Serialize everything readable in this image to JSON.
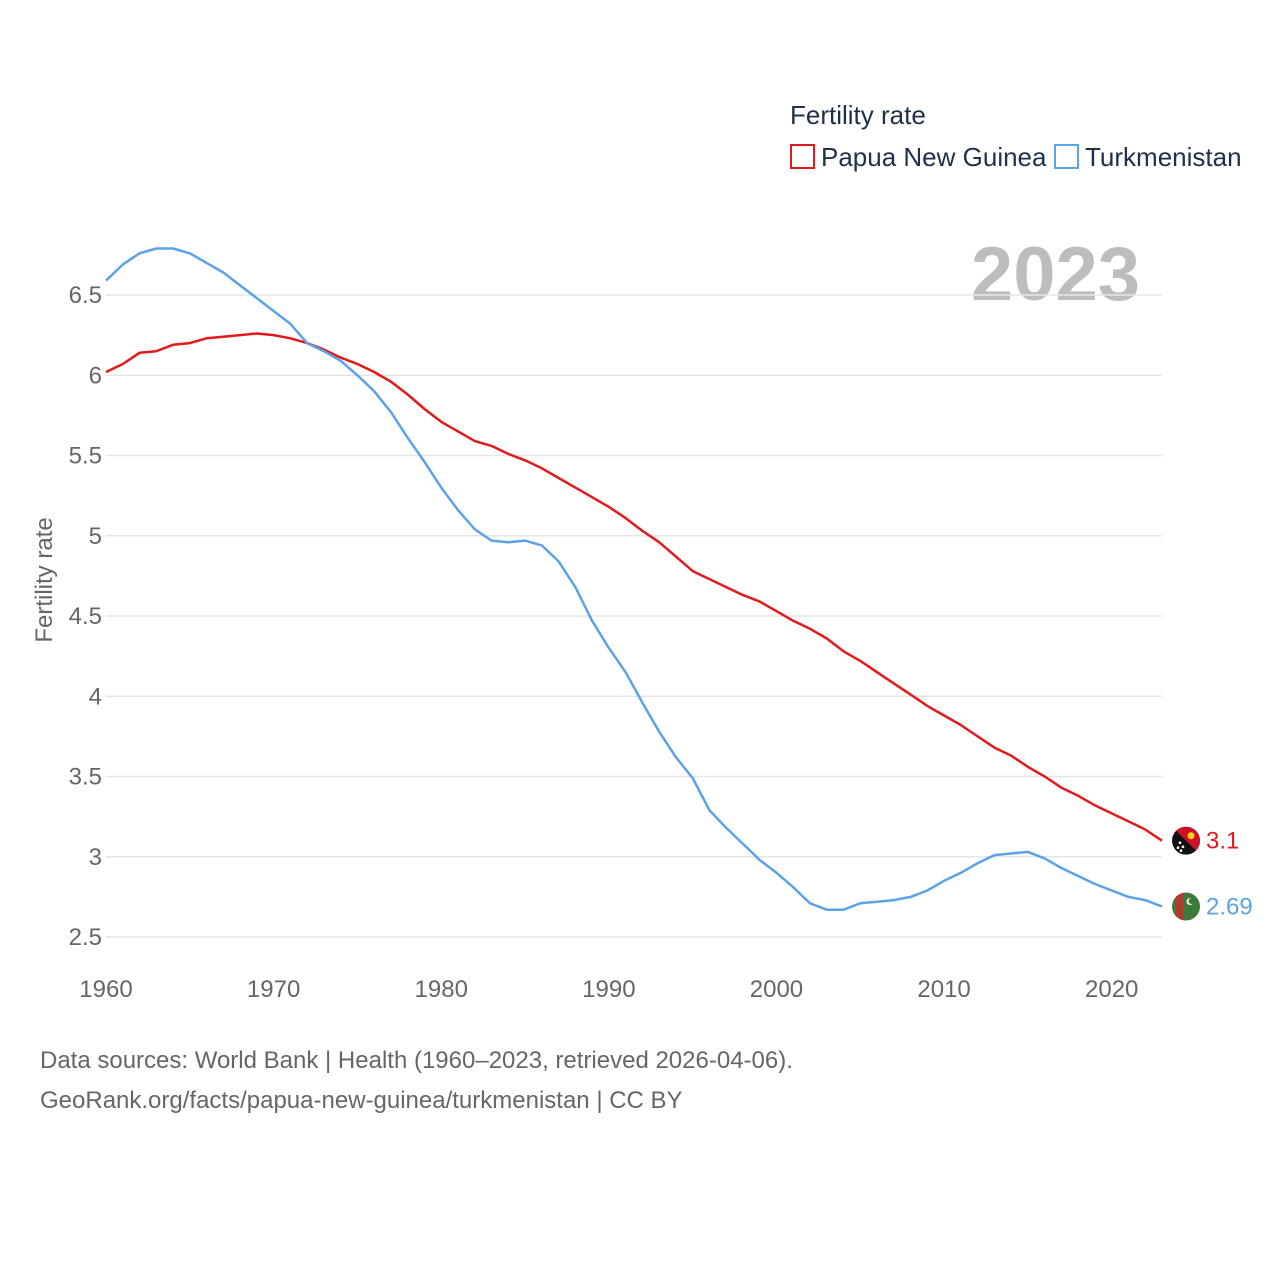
{
  "chart_data": {
    "type": "line",
    "title": "Fertility rate",
    "ylabel": "Fertility rate",
    "xlabel": "",
    "current_year": "2023",
    "xlim": [
      1960,
      2023
    ],
    "ylim": [
      2.3,
      6.85
    ],
    "y_ticks": [
      2.5,
      3,
      3.5,
      4,
      4.5,
      5,
      5.5,
      6,
      6.5
    ],
    "x_ticks": [
      1960,
      1970,
      1980,
      1990,
      2000,
      2010,
      2020
    ],
    "grid": true,
    "legend_position": "top-right",
    "x": [
      1960,
      1961,
      1962,
      1963,
      1964,
      1965,
      1966,
      1967,
      1968,
      1969,
      1970,
      1971,
      1972,
      1973,
      1974,
      1975,
      1976,
      1977,
      1978,
      1979,
      1980,
      1981,
      1982,
      1983,
      1984,
      1985,
      1986,
      1987,
      1988,
      1989,
      1990,
      1991,
      1992,
      1993,
      1994,
      1995,
      1996,
      1997,
      1998,
      1999,
      2000,
      2001,
      2002,
      2003,
      2004,
      2005,
      2006,
      2007,
      2008,
      2009,
      2010,
      2011,
      2012,
      2013,
      2014,
      2015,
      2016,
      2017,
      2018,
      2019,
      2020,
      2021,
      2022,
      2023
    ],
    "series": [
      {
        "name": "Papua New Guinea",
        "color": "#e31a1c",
        "end_label": "3.1",
        "flag": "papua-new-guinea-flag",
        "values": [
          6.02,
          6.07,
          6.14,
          6.15,
          6.19,
          6.2,
          6.23,
          6.24,
          6.25,
          6.26,
          6.25,
          6.23,
          6.2,
          6.16,
          6.11,
          6.07,
          6.02,
          5.96,
          5.88,
          5.79,
          5.71,
          5.65,
          5.59,
          5.56,
          5.51,
          5.47,
          5.42,
          5.36,
          5.3,
          5.24,
          5.18,
          5.11,
          5.03,
          4.96,
          4.87,
          4.78,
          4.73,
          4.68,
          4.63,
          4.59,
          4.53,
          4.47,
          4.42,
          4.36,
          4.28,
          4.22,
          4.15,
          4.08,
          4.01,
          3.94,
          3.88,
          3.82,
          3.75,
          3.68,
          3.63,
          3.56,
          3.5,
          3.43,
          3.38,
          3.32,
          3.27,
          3.22,
          3.17,
          3.1
        ]
      },
      {
        "name": "Turkmenistan",
        "color": "#5ba3e6",
        "end_label": "2.69",
        "flag": "turkmenistan-flag",
        "values": [
          6.59,
          6.69,
          6.76,
          6.79,
          6.79,
          6.76,
          6.7,
          6.64,
          6.56,
          6.48,
          6.4,
          6.32,
          6.2,
          6.15,
          6.09,
          6.0,
          5.9,
          5.77,
          5.61,
          5.46,
          5.3,
          5.16,
          5.04,
          4.97,
          4.96,
          4.97,
          4.94,
          4.84,
          4.68,
          4.47,
          4.3,
          4.15,
          3.96,
          3.78,
          3.62,
          3.49,
          3.29,
          3.18,
          3.08,
          2.98,
          2.9,
          2.81,
          2.71,
          2.67,
          2.67,
          2.71,
          2.72,
          2.73,
          2.75,
          2.79,
          2.85,
          2.9,
          2.96,
          3.01,
          3.02,
          3.03,
          2.99,
          2.93,
          2.88,
          2.83,
          2.79,
          2.75,
          2.73,
          2.69
        ]
      }
    ]
  },
  "footer": {
    "source_line": "Data sources: World Bank | Health (1960–2023, retrieved 2026-04-06).",
    "url_line": "GeoRank.org/facts/papua-new-guinea/turkmenistan | CC BY"
  }
}
